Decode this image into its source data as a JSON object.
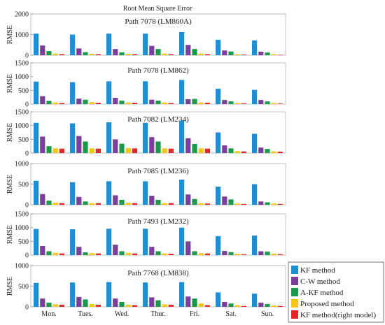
{
  "chart_data": {
    "type": "bar",
    "title": "Root Mean Square Error",
    "ylabel": "RMSE",
    "categories": [
      "Mon.",
      "Tues.",
      "Wed.",
      "Thur.",
      "Fri.",
      "Sat.",
      "Sun."
    ],
    "legend_position": "bottom-right",
    "grid": false,
    "series_meta": [
      {
        "name": "KF method",
        "color": "#1f8fd4"
      },
      {
        "name": "C-W method",
        "color": "#7b3f9b"
      },
      {
        "name": "A-KF method",
        "color": "#1a9a4a"
      },
      {
        "name": "Proposed method",
        "color": "#f5c518"
      },
      {
        "name": "KF method(right model)",
        "color": "#e8262a"
      }
    ],
    "panels": [
      {
        "title": "Path 7078 (LM860A)",
        "ylim": [
          0,
          2000
        ],
        "yticks": [
          0,
          1000,
          2000
        ],
        "series": [
          {
            "name": "KF method",
            "values": [
              1050,
              1000,
              1050,
              1050,
              1120,
              750,
              720
            ]
          },
          {
            "name": "C-W method",
            "values": [
              470,
              330,
              300,
              450,
              500,
              230,
              170
            ]
          },
          {
            "name": "A-KF method",
            "values": [
              200,
              150,
              140,
              300,
              300,
              180,
              130
            ]
          },
          {
            "name": "Proposed method",
            "values": [
              80,
              70,
              70,
              80,
              80,
              50,
              50
            ]
          },
          {
            "name": "KF method(right model)",
            "values": [
              50,
              50,
              50,
              50,
              50,
              30,
              20
            ]
          }
        ]
      },
      {
        "title": "Path 7078 (LM862)",
        "ylim": [
          0,
          1500
        ],
        "yticks": [
          0,
          500,
          1000,
          1500
        ],
        "series": [
          {
            "name": "KF method",
            "values": [
              820,
              800,
              830,
              830,
              880,
              560,
              520
            ]
          },
          {
            "name": "C-W method",
            "values": [
              290,
              200,
              230,
              160,
              180,
              150,
              150
            ]
          },
          {
            "name": "A-KF method",
            "values": [
              120,
              160,
              130,
              130,
              190,
              100,
              100
            ]
          },
          {
            "name": "Proposed method",
            "values": [
              60,
              70,
              60,
              60,
              60,
              40,
              40
            ]
          },
          {
            "name": "KF method(right model)",
            "values": [
              40,
              50,
              50,
              40,
              50,
              30,
              20
            ]
          }
        ]
      },
      {
        "title": "Path 7082 (LM234)",
        "ylim": [
          0,
          1500
        ],
        "yticks": [
          0,
          500,
          1000,
          1500
        ],
        "series": [
          {
            "name": "KF method",
            "values": [
              1100,
              1080,
              1120,
              1100,
              1180,
              750,
              700
            ]
          },
          {
            "name": "C-W method",
            "values": [
              600,
              620,
              500,
              580,
              540,
              280,
              200
            ]
          },
          {
            "name": "A-KF method",
            "values": [
              250,
              420,
              340,
              420,
              330,
              170,
              150
            ]
          },
          {
            "name": "Proposed method",
            "values": [
              170,
              170,
              180,
              170,
              170,
              70,
              60
            ]
          },
          {
            "name": "KF method(right model)",
            "values": [
              160,
              160,
              170,
              160,
              160,
              60,
              50
            ]
          }
        ]
      },
      {
        "title": "Path 7085 (LM236)",
        "ylim": [
          0,
          1000
        ],
        "yticks": [
          0,
          500,
          1000
        ],
        "series": [
          {
            "name": "KF method",
            "values": [
              580,
              550,
              570,
              570,
              610,
              440,
              500
            ]
          },
          {
            "name": "C-W method",
            "values": [
              260,
              190,
              230,
              220,
              250,
              200,
              80
            ]
          },
          {
            "name": "A-KF method",
            "values": [
              100,
              80,
              120,
              120,
              140,
              130,
              60
            ]
          },
          {
            "name": "Proposed method",
            "values": [
              50,
              40,
              50,
              40,
              40,
              30,
              30
            ]
          },
          {
            "name": "KF method(right model)",
            "values": [
              40,
              40,
              40,
              40,
              30,
              20,
              20
            ]
          }
        ]
      },
      {
        "title": "Path 7493 (LM232)",
        "ylim": [
          0,
          1500
        ],
        "yticks": [
          0,
          500,
          1000,
          1500
        ],
        "series": [
          {
            "name": "KF method",
            "values": [
              950,
              940,
              960,
              960,
              1000,
              690,
              710
            ]
          },
          {
            "name": "C-W method",
            "values": [
              330,
              300,
              380,
              300,
              500,
              150,
              140
            ]
          },
          {
            "name": "A-KF method",
            "values": [
              140,
              100,
              140,
              140,
              140,
              110,
              130
            ]
          },
          {
            "name": "Proposed method",
            "values": [
              80,
              70,
              80,
              60,
              70,
              50,
              50
            ]
          },
          {
            "name": "KF method(right model)",
            "values": [
              60,
              60,
              60,
              50,
              60,
              30,
              30
            ]
          }
        ]
      },
      {
        "title": "Path 7768 (LM838)",
        "ylim": [
          0,
          1000
        ],
        "yticks": [
          0,
          500,
          1000
        ],
        "series": [
          {
            "name": "KF method",
            "values": [
              580,
              590,
              600,
              590,
              600,
              350,
              320
            ]
          },
          {
            "name": "C-W method",
            "values": [
              200,
              240,
              200,
              230,
              250,
              120,
              100
            ]
          },
          {
            "name": "A-KF method",
            "values": [
              100,
              180,
              120,
              160,
              200,
              80,
              70
            ]
          },
          {
            "name": "Proposed method",
            "values": [
              60,
              70,
              50,
              60,
              80,
              40,
              30
            ]
          },
          {
            "name": "KF method(right model)",
            "values": [
              50,
              50,
              40,
              50,
              40,
              20,
              20
            ]
          }
        ]
      }
    ]
  }
}
